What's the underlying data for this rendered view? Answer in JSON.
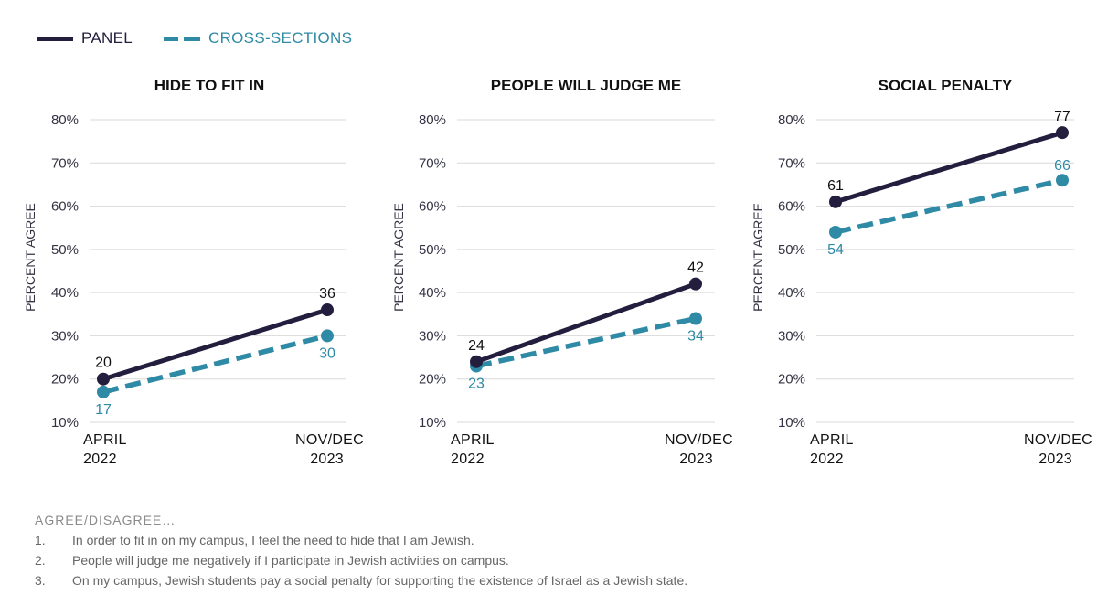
{
  "legend": {
    "panel_label": "PANEL",
    "cross_label": "CROSS-SECTIONS"
  },
  "colors": {
    "panel": "#231d3e",
    "cross": "#2e8aa5",
    "grid": "#d9d9d9"
  },
  "chart_data": [
    {
      "type": "line",
      "title": "HIDE TO FIT IN",
      "ylabel": "PERCENT AGREE",
      "xlabel": "",
      "categories": [
        [
          "APRIL",
          "2022"
        ],
        [
          "NOV/DEC",
          "2023"
        ]
      ],
      "ylim": [
        10,
        80
      ],
      "yticks": [
        10,
        20,
        30,
        40,
        50,
        60,
        70,
        80
      ],
      "ytick_labels": [
        "10%",
        "20%",
        "30%",
        "40%",
        "50%",
        "60%",
        "70%",
        "80%"
      ],
      "grid": true,
      "series": [
        {
          "name": "PANEL",
          "values": [
            20,
            36
          ],
          "labels": [
            "20",
            "36"
          ],
          "style": "solid"
        },
        {
          "name": "CROSS-SECTIONS",
          "values": [
            17,
            30
          ],
          "labels": [
            "17",
            "30"
          ],
          "style": "dashed"
        }
      ]
    },
    {
      "type": "line",
      "title": "PEOPLE WILL JUDGE ME",
      "ylabel": "PERCENT AGREE",
      "xlabel": "",
      "categories": [
        [
          "APRIL",
          "2022"
        ],
        [
          "NOV/DEC",
          "2023"
        ]
      ],
      "ylim": [
        10,
        80
      ],
      "yticks": [
        10,
        20,
        30,
        40,
        50,
        60,
        70,
        80
      ],
      "ytick_labels": [
        "10%",
        "20%",
        "30%",
        "40%",
        "50%",
        "60%",
        "70%",
        "80%"
      ],
      "grid": true,
      "series": [
        {
          "name": "PANEL",
          "values": [
            24,
            42
          ],
          "labels": [
            "24",
            "42"
          ],
          "style": "solid"
        },
        {
          "name": "CROSS-SECTIONS",
          "values": [
            23,
            34
          ],
          "labels": [
            "23",
            "34"
          ],
          "style": "dashed"
        }
      ]
    },
    {
      "type": "line",
      "title": "SOCIAL PENALTY",
      "ylabel": "PERCENT AGREE",
      "xlabel": "",
      "categories": [
        [
          "APRIL",
          "2022"
        ],
        [
          "NOV/DEC",
          "2023"
        ]
      ],
      "ylim": [
        10,
        80
      ],
      "yticks": [
        10,
        20,
        30,
        40,
        50,
        60,
        70,
        80
      ],
      "ytick_labels": [
        "10%",
        "20%",
        "30%",
        "40%",
        "50%",
        "60%",
        "70%",
        "80%"
      ],
      "grid": true,
      "series": [
        {
          "name": "PANEL",
          "values": [
            61,
            77
          ],
          "labels": [
            "61",
            "77"
          ],
          "style": "solid"
        },
        {
          "name": "CROSS-SECTIONS",
          "values": [
            54,
            66
          ],
          "labels": [
            "54",
            "66"
          ],
          "style": "dashed"
        }
      ]
    }
  ],
  "notes": {
    "heading": "AGREE/DISAGREE…",
    "items": [
      {
        "num": "1.",
        "text": "In order to fit in on my campus, I feel the need to hide that I am Jewish."
      },
      {
        "num": "2.",
        "text": "People will judge me negatively if I participate in Jewish activities on campus."
      },
      {
        "num": "3.",
        "text": "On my campus, Jewish students pay a social penalty for supporting the existence of Israel as a Jewish state."
      }
    ]
  }
}
